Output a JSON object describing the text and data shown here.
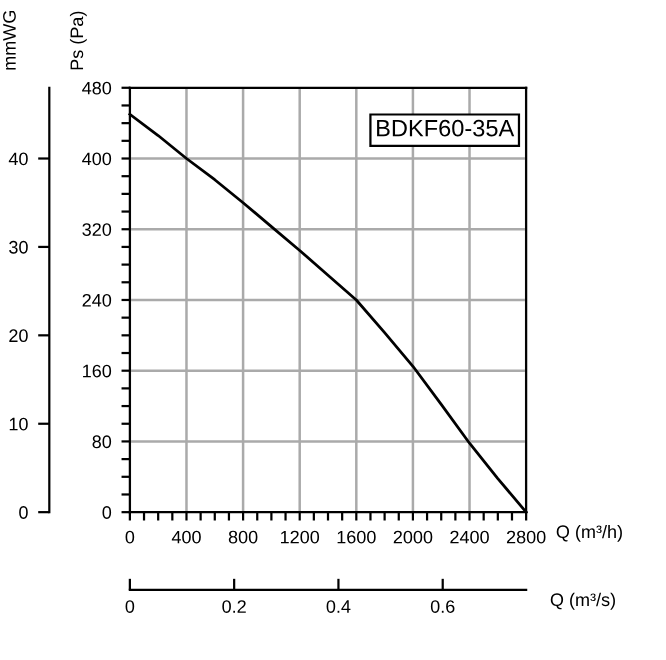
{
  "chart_data": {
    "type": "line",
    "x": [
      0,
      200,
      400,
      600,
      800,
      1000,
      1200,
      1400,
      1600,
      1800,
      2000,
      2200,
      2400,
      2600,
      2800
    ],
    "series": [
      {
        "color": "#000000",
        "values": [
          450,
          426,
          400,
          376,
          350,
          323,
          296,
          268,
          240,
          203,
          165,
          122,
          78,
          38,
          0
        ]
      }
    ],
    "xlim": [
      0,
      2800
    ],
    "xticks": [
      0,
      {
        "value": 100,
        "label": null
      },
      {
        "value": 200,
        "label": null
      },
      {
        "value": 300,
        "label": null
      },
      400,
      {
        "value": 500,
        "label": null
      },
      {
        "value": 600,
        "label": null
      },
      {
        "value": 700,
        "label": null
      },
      800,
      {
        "value": 900,
        "label": null
      },
      {
        "value": 1000,
        "label": null
      },
      {
        "value": 1100,
        "label": null
      },
      1200,
      {
        "value": 1300,
        "label": null
      },
      {
        "value": 1400,
        "label": null
      },
      {
        "value": 1500,
        "label": null
      },
      1600,
      {
        "value": 1700,
        "label": null
      },
      {
        "value": 1800,
        "label": null
      },
      {
        "value": 1900,
        "label": null
      },
      2000,
      {
        "value": 2100,
        "label": null
      },
      {
        "value": 2200,
        "label": null
      },
      {
        "value": 2300,
        "label": null
      },
      2400,
      {
        "value": 2500,
        "label": null
      },
      {
        "value": 2600,
        "label": null
      },
      {
        "value": 2700,
        "label": null
      },
      2800
    ],
    "ylim": [
      0,
      480
    ],
    "yticks": [
      0,
      {
        "value": 20,
        "label": null
      },
      {
        "value": 40,
        "label": null
      },
      {
        "value": 60,
        "label": null
      },
      80,
      {
        "value": 100,
        "label": null
      },
      {
        "value": 120,
        "label": null
      },
      {
        "value": 140,
        "label": null
      },
      160,
      {
        "value": 180,
        "label": null
      },
      {
        "value": 200,
        "label": null
      },
      {
        "value": 220,
        "label": null
      },
      240,
      {
        "value": 260,
        "label": null
      },
      {
        "value": 280,
        "label": null
      },
      {
        "value": 300,
        "label": null
      },
      320,
      {
        "value": 340,
        "label": null
      },
      {
        "value": 360,
        "label": null
      },
      {
        "value": 380,
        "label": null
      },
      400,
      {
        "value": 420,
        "label": null
      },
      {
        "value": 440,
        "label": null
      },
      {
        "value": 460,
        "label": null
      },
      480
    ],
    "y2lim": [
      0,
      48
    ],
    "y2ticks": [
      0,
      10,
      20,
      30,
      40
    ],
    "x2lim": [
      0,
      0.76
    ],
    "x2ticks": [
      0,
      0.2,
      0.4,
      0.6
    ],
    "xlabel": "Q (m³/h)",
    "x2label": "Q (m³/s)",
    "ylabel": "Ps (Pa)",
    "y2label": "mmWG",
    "annotations": [
      "BDKF60-35A"
    ],
    "grid": true,
    "line_style": "solid",
    "marker": "none"
  }
}
